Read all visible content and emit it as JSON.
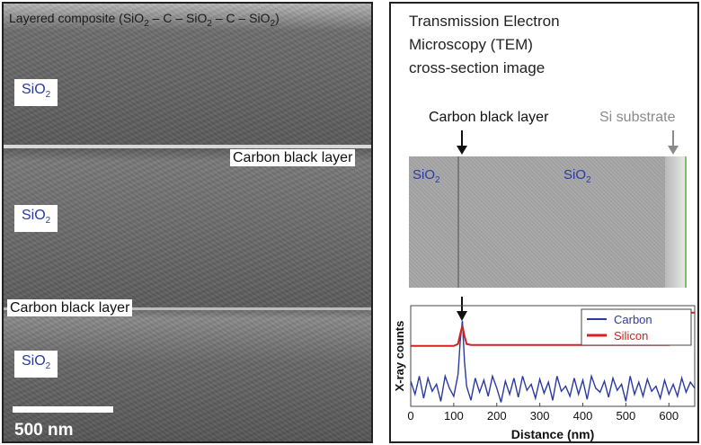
{
  "sem": {
    "title_prefix": "Layered composite (SiO",
    "title_sub1": "2",
    "title_mid1": " – C – SiO",
    "title_sub2": "2",
    "title_mid2": " – C – SiO",
    "title_sub3": "2",
    "title_suffix": ")",
    "sio2_base": "SiO",
    "sio2_sub": "2",
    "carbon_label_top": "Carbon black layer",
    "carbon_label_bottom": "Carbon black layer",
    "scale_bar_label": "500 nm"
  },
  "tem": {
    "title_line1": "Transmission Electron",
    "title_line2": "Microscopy (TEM)",
    "title_line3": "cross-section image",
    "carbon_label": "Carbon black layer",
    "substrate_label": "Si substrate",
    "sio2_base": "SiO",
    "sio2_sub": "2",
    "colors": {
      "carbon": "#2b3aa0",
      "silicon": "#d42020",
      "substrate_label": "#8a8a8a"
    }
  },
  "chart_data": {
    "type": "line",
    "xlabel": "Distance (nm)",
    "ylabel": "X-ray counts",
    "xlim": [
      0,
      660
    ],
    "ylim": [
      0,
      1
    ],
    "xticks": [
      "0",
      "100",
      "200",
      "300",
      "400",
      "500",
      "600"
    ],
    "xtick_values": [
      0,
      100,
      200,
      300,
      400,
      500,
      600
    ],
    "legend_position": "top-right",
    "series": [
      {
        "name": "Carbon",
        "color": "#2b3aa0",
        "x": [
          0,
          10,
          20,
          30,
          40,
          50,
          60,
          70,
          80,
          90,
          100,
          110,
          115,
          120,
          125,
          130,
          140,
          150,
          160,
          170,
          180,
          190,
          200,
          210,
          220,
          230,
          240,
          250,
          260,
          270,
          280,
          290,
          300,
          310,
          320,
          330,
          340,
          350,
          360,
          370,
          380,
          390,
          400,
          410,
          420,
          430,
          440,
          450,
          460,
          470,
          480,
          490,
          500,
          510,
          520,
          530,
          540,
          550,
          560,
          570,
          580,
          590,
          600,
          610,
          620,
          630,
          640,
          650,
          660
        ],
        "values": [
          0.25,
          0.12,
          0.3,
          0.08,
          0.28,
          0.15,
          0.22,
          0.05,
          0.3,
          0.18,
          0.1,
          0.32,
          0.65,
          0.85,
          0.45,
          0.2,
          0.06,
          0.28,
          0.14,
          0.26,
          0.1,
          0.3,
          0.18,
          0.04,
          0.25,
          0.12,
          0.28,
          0.09,
          0.3,
          0.16,
          0.22,
          0.08,
          0.27,
          0.13,
          0.24,
          0.06,
          0.3,
          0.15,
          0.2,
          0.1,
          0.28,
          0.12,
          0.26,
          0.07,
          0.3,
          0.18,
          0.14,
          0.25,
          0.09,
          0.28,
          0.16,
          0.22,
          0.05,
          0.3,
          0.12,
          0.24,
          0.1,
          0.27,
          0.15,
          0.2,
          0.08,
          0.26,
          0.12,
          0.22,
          0.1,
          0.28,
          0.14,
          0.24,
          0.18
        ]
      },
      {
        "name": "Silicon",
        "color": "#d42020",
        "x": [
          0,
          100,
          110,
          115,
          120,
          125,
          130,
          140,
          200,
          300,
          400,
          500,
          600,
          615,
          620,
          625,
          630,
          640,
          650,
          660
        ],
        "values": [
          0.6,
          0.6,
          0.62,
          0.72,
          0.8,
          0.7,
          0.62,
          0.61,
          0.61,
          0.61,
          0.61,
          0.61,
          0.61,
          0.62,
          0.78,
          0.9,
          0.92,
          0.92,
          0.93,
          0.93
        ]
      }
    ]
  }
}
